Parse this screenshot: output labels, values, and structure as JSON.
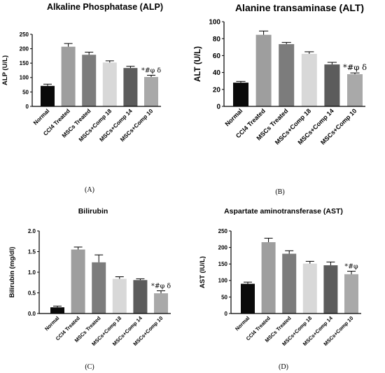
{
  "figure": {
    "panel_labels": [
      "(A)",
      "(B)",
      "(C)",
      "(D)"
    ]
  },
  "chart_data": [
    {
      "type": "bar",
      "title": "Alkaline Phosphatase (ALP)",
      "ylabel": "ALP (U/L)",
      "xlabel": "",
      "categories": [
        "Normal",
        "CCl4 Treated",
        "MSCs Treated",
        "MSCs+Comp 18",
        "MSCs+Comp 14",
        "MSCs+Comp 10"
      ],
      "values": [
        71,
        207,
        179,
        152,
        133,
        102
      ],
      "errors": [
        6,
        11,
        9,
        6,
        6,
        6
      ],
      "ylim": [
        0,
        250
      ],
      "yticks": [
        "0",
        "50",
        "100",
        "150",
        "200",
        "250"
      ],
      "bar_colors": [
        "#0a0a0a",
        "#9e9e9e",
        "#7c7c7c",
        "#d8d8d8",
        "#5c5c5c",
        "#a9a9a9"
      ],
      "annotations": [
        {
          "category": "MSCs+Comp 10",
          "text": "*#φ δ"
        }
      ],
      "grid": false,
      "legend": "none",
      "panel_label": "(A)"
    },
    {
      "type": "bar",
      "title": "Alanine transaminase (ALT)",
      "ylabel": "ALT (U/L)",
      "xlabel": "",
      "categories": [
        "Normal",
        "CCl4 Treated",
        "MSCs Treated",
        "MSCs+Comp 18",
        "MSCs+Comp 14",
        "MSCs+Comp 10"
      ],
      "values": [
        28,
        84.5,
        73.5,
        62,
        49.5,
        38
      ],
      "errors": [
        1.5,
        4.5,
        2,
        2.5,
        2.5,
        1.5
      ],
      "ylim": [
        0,
        100
      ],
      "yticks": [
        "0",
        "20",
        "40",
        "60",
        "80",
        "100"
      ],
      "bar_colors": [
        "#0a0a0a",
        "#9e9e9e",
        "#7c7c7c",
        "#d8d8d8",
        "#5c5c5c",
        "#a9a9a9"
      ],
      "annotations": [
        {
          "category": "MSCs+Comp 10",
          "text": "*#φ δ"
        }
      ],
      "grid": false,
      "legend": "none",
      "panel_label": "(B)"
    },
    {
      "type": "bar",
      "title": "Bilirubin",
      "ylabel": "Bilirubin (mg/dl)",
      "xlabel": "",
      "categories": [
        "Normal",
        "CCl4 Treated",
        "MSCs Treated",
        "MSCs+Comp 18",
        "MSCs+Comp 14",
        "MSCs+Comp 10"
      ],
      "values": [
        0.15,
        1.55,
        1.24,
        0.84,
        0.81,
        0.49
      ],
      "errors": [
        0.03,
        0.06,
        0.18,
        0.05,
        0.03,
        0.06
      ],
      "ylim": [
        0,
        2.0
      ],
      "yticks": [
        "0.0",
        "0.5",
        "1.0",
        "1.5",
        "2.0"
      ],
      "bar_colors": [
        "#0a0a0a",
        "#9e9e9e",
        "#7c7c7c",
        "#d8d8d8",
        "#5c5c5c",
        "#a9a9a9"
      ],
      "annotations": [
        {
          "category": "MSCs+Comp 10",
          "text": "*#φ δ"
        }
      ],
      "grid": false,
      "legend": "none",
      "panel_label": "(C)"
    },
    {
      "type": "bar",
      "title": "Aspartate aminotransferase (AST)",
      "ylabel": "AST (IU/L)",
      "xlabel": "",
      "categories": [
        "Normal",
        "CCl4 Treated",
        "MSCs Treated",
        "MSCs+Comp 18",
        "MSCs+Comp 14",
        "MSCs+Comp 10"
      ],
      "values": [
        90,
        216,
        181,
        151,
        146,
        119
      ],
      "errors": [
        5,
        12,
        9,
        7,
        10,
        9
      ],
      "ylim": [
        0,
        250
      ],
      "yticks": [
        "0",
        "50",
        "100",
        "150",
        "200",
        "250"
      ],
      "bar_colors": [
        "#0a0a0a",
        "#9e9e9e",
        "#7c7c7c",
        "#d8d8d8",
        "#5c5c5c",
        "#a9a9a9"
      ],
      "annotations": [
        {
          "category": "MSCs+Comp 10",
          "text": "*#φ"
        }
      ],
      "grid": false,
      "legend": "none",
      "panel_label": "(D)"
    }
  ]
}
